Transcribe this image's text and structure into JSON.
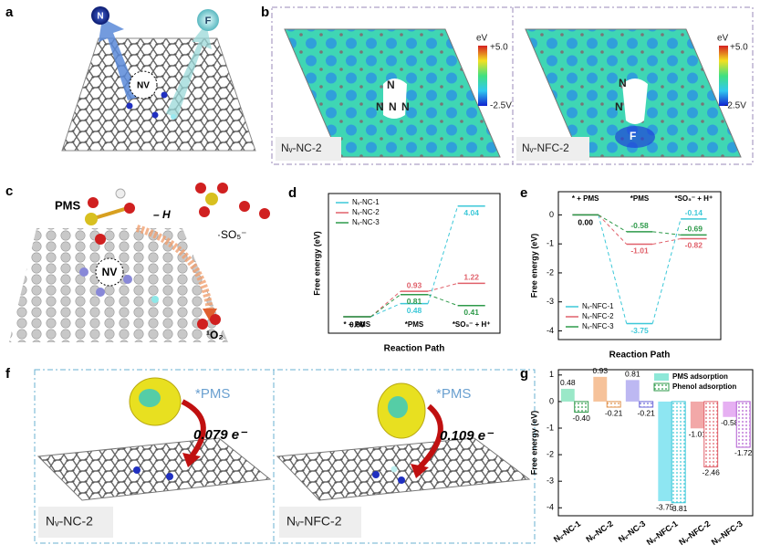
{
  "figure": {
    "panels": [
      "a",
      "b",
      "c",
      "d",
      "e",
      "f",
      "g"
    ],
    "a": {
      "n": "N",
      "f": "F",
      "nv": "NV"
    },
    "b": {
      "unit": "eV",
      "max": "+5.0",
      "min": "-2.5V",
      "left_label": "Nᵥ-NC-2",
      "right_label": "Nᵥ-NFC-2",
      "left_atoms": [
        "N",
        "N",
        "N",
        "N"
      ],
      "right_atoms": [
        "N",
        "N",
        "F"
      ],
      "right_unit": "eV",
      "right_max": "+5.0",
      "right_min": "-2.5V"
    },
    "c": {
      "pms": "PMS",
      "h": "– H",
      "so5": "·SO₅⁻",
      "o2": "¹O₂",
      "nv": "NV"
    },
    "f": {
      "left_label": "Nᵥ-NC-2",
      "right_label": "Nᵥ-NFC-2",
      "left_tag": "*PMS",
      "right_tag": "*PMS",
      "left_charge": "0.079 e⁻",
      "right_charge": "0.109 e⁻"
    }
  },
  "chart_data": [
    {
      "type": "energy",
      "ylabel": "Free energy (eV)",
      "xlabel": "Reaction Path",
      "categories": [
        "* + PMS",
        "*PMS",
        "*SO₅⁻ + H⁺"
      ],
      "xticks_side": "bottom",
      "legend": "upper left",
      "ylim": [
        -0.6,
        4.5
      ],
      "series": [
        {
          "name": "Nᵥ-NC-1",
          "color": "#3cc8d8",
          "values": [
            0,
            0.48,
            4.04
          ],
          "value_labels": [
            "0.00",
            "0.48",
            "4.04"
          ]
        },
        {
          "name": "Nᵥ-NC-2",
          "color": "#e0606a",
          "values": [
            0,
            0.93,
            1.22
          ],
          "value_labels": [
            null,
            "0.93",
            "1.22"
          ]
        },
        {
          "name": "Nᵥ-NC-3",
          "color": "#2e9a4a",
          "values": [
            0,
            0.81,
            0.41
          ],
          "value_labels": [
            null,
            "0.81",
            "0.41"
          ]
        }
      ]
    },
    {
      "type": "energy",
      "ylabel": "Free energy (eV)",
      "xlabel": "Reaction Path",
      "categories": [
        "* + PMS",
        "*PMS",
        "*SO₅⁻ + H⁺"
      ],
      "xticks_side": "top",
      "legend": "lower left",
      "ylim": [
        -4.3,
        0.8
      ],
      "yticks": [
        0,
        -1,
        -2,
        -3,
        -4
      ],
      "series": [
        {
          "name": "Nᵥ-NFC-1",
          "color": "#3cc8d8",
          "values": [
            0,
            -3.75,
            -0.14
          ],
          "value_labels": [
            "0.00",
            "-3.75",
            "-0.14"
          ]
        },
        {
          "name": "Nᵥ-NFC-2",
          "color": "#e0606a",
          "values": [
            0,
            -1.01,
            -0.82
          ],
          "value_labels": [
            null,
            "-1.01",
            "-0.82"
          ]
        },
        {
          "name": "Nᵥ-NFC-3",
          "color": "#2e9a4a",
          "values": [
            0,
            -0.58,
            -0.69
          ],
          "value_labels": [
            null,
            "-0.58",
            "-0.69"
          ]
        }
      ]
    },
    {
      "type": "bar",
      "ylabel": "Free energy (eV)",
      "legend": "upper right",
      "categories": [
        "Nᵥ-NC-1",
        "Nᵥ-NC-2",
        "Nᵥ-NC-3",
        "Nᵥ-NFC-1",
        "Nᵥ-NFC-2",
        "Nᵥ-NFC-3"
      ],
      "ylim": [
        -4.3,
        1.2
      ],
      "yticks": [
        1,
        0,
        -1,
        -2,
        -3,
        -4
      ],
      "series": [
        {
          "name": "PMS adsorption",
          "color": "#8ee8d8",
          "pattern": "solid",
          "colors": [
            "#9ae8c8",
            "#f6c29a",
            "#bdb8f2",
            "#8ee6f2",
            "#f2a8a8",
            "#e6b0f2"
          ],
          "values": [
            0.48,
            0.93,
            0.81,
            -3.75,
            -1.01,
            -0.58
          ]
        },
        {
          "name": "Phenol adsorption",
          "color": "#2e9a4a",
          "pattern": "hatch",
          "colors": [
            "#2e9a4a",
            "#e0904a",
            "#6a66d8",
            "#3cc8d8",
            "#e0606a",
            "#b05ad0"
          ],
          "values": [
            -0.4,
            -0.21,
            -0.21,
            -3.81,
            -2.46,
            -1.72
          ],
          "value_labels": [
            "-0.40",
            "-0.21",
            "-0.21",
            "-3.81",
            "-2.46",
            "-1.72"
          ]
        }
      ]
    }
  ]
}
